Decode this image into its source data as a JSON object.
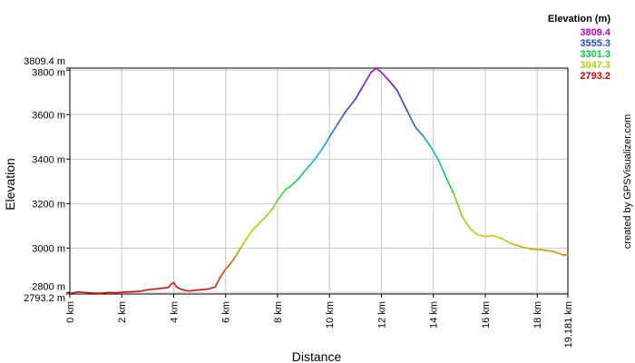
{
  "chart_data": {
    "type": "line",
    "title": "",
    "xlabel": "Distance",
    "ylabel": "Elevation",
    "xlim": [
      0,
      19.181
    ],
    "ylim": [
      2793.2,
      3809.4
    ],
    "grid": true,
    "x_ticks": [
      {
        "value": 0,
        "label": "0 km"
      },
      {
        "value": 2,
        "label": "2 km"
      },
      {
        "value": 4,
        "label": "4 km"
      },
      {
        "value": 6,
        "label": "6 km"
      },
      {
        "value": 8,
        "label": "8 km"
      },
      {
        "value": 10,
        "label": "10 km"
      },
      {
        "value": 12,
        "label": "12 km"
      },
      {
        "value": 14,
        "label": "14 km"
      },
      {
        "value": 16,
        "label": "16 km"
      },
      {
        "value": 18,
        "label": "18 km"
      },
      {
        "value": 19.181,
        "label": "19.181 km"
      }
    ],
    "y_ticks": [
      {
        "value": 2793.2,
        "label": "2793.2 m"
      },
      {
        "value": 2800,
        "label": "2800 m"
      },
      {
        "value": 3000,
        "label": "3000 m"
      },
      {
        "value": 3200,
        "label": "3200 m"
      },
      {
        "value": 3400,
        "label": "3400 m"
      },
      {
        "value": 3600,
        "label": "3600 m"
      },
      {
        "value": 3800,
        "label": "3800 m"
      },
      {
        "value": 3809.4,
        "label": "3809.4 m"
      }
    ],
    "legend": {
      "title": "Elevation (m)",
      "placement": "top-right",
      "entries": [
        {
          "label": "3809.4",
          "color": "#cc00cc"
        },
        {
          "label": "3555.3",
          "color": "#1f48d0"
        },
        {
          "label": "3301.3",
          "color": "#00cc44"
        },
        {
          "label": "3047.3",
          "color": "#b4d400"
        },
        {
          "label": "2793.2",
          "color": "#e00000"
        }
      ]
    },
    "credit": "created by GPSVisualizer.com",
    "series": [
      {
        "x": [
          0,
          0.3,
          0.6,
          0.9,
          1.2,
          1.5,
          1.8,
          2.1,
          2.4,
          2.7,
          3.0,
          3.3,
          3.6,
          3.8,
          3.9,
          4.0,
          4.1,
          4.2,
          4.4,
          4.6,
          4.8,
          5.0,
          5.3,
          5.6,
          5.8,
          6.0,
          6.2,
          6.4,
          6.6,
          6.8,
          7.0,
          7.2,
          7.5,
          7.8,
          8.0,
          8.3,
          8.5,
          8.8,
          9.0,
          9.3,
          9.5,
          9.8,
          10.0,
          10.3,
          10.6,
          11.0,
          11.3,
          11.6,
          11.8,
          12.0,
          12.3,
          12.6,
          13.0,
          13.3,
          13.6,
          13.9,
          14.2,
          14.5,
          14.8,
          15.1,
          15.4,
          15.7,
          16.0,
          16.3,
          16.6,
          17.0,
          17.4,
          17.8,
          18.2,
          18.6,
          18.8,
          19.0,
          19.181
        ],
        "y": [
          2795,
          2802,
          2800,
          2797,
          2796,
          2800,
          2799,
          2802,
          2803,
          2806,
          2812,
          2816,
          2820,
          2823,
          2838,
          2845,
          2826,
          2819,
          2810,
          2807,
          2810,
          2812,
          2815,
          2825,
          2870,
          2905,
          2932,
          2965,
          3005,
          3040,
          3075,
          3100,
          3135,
          3175,
          3215,
          3262,
          3278,
          3310,
          3340,
          3380,
          3410,
          3460,
          3500,
          3555,
          3610,
          3670,
          3730,
          3790,
          3809,
          3790,
          3752,
          3710,
          3615,
          3545,
          3505,
          3455,
          3395,
          3315,
          3240,
          3145,
          3090,
          3060,
          3052,
          3055,
          3045,
          3020,
          3005,
          2995,
          2992,
          2985,
          2978,
          2968,
          2972
        ]
      }
    ]
  }
}
